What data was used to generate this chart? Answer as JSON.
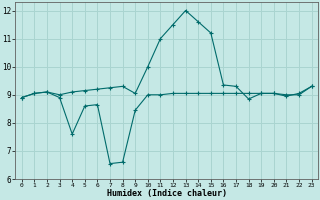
{
  "xlabel": "Humidex (Indice chaleur)",
  "bg_color": "#c5e8e5",
  "line_color": "#006b6b",
  "grid_color": "#aad4d0",
  "xlim": [
    -0.5,
    23.5
  ],
  "ylim": [
    6,
    12.3
  ],
  "xticks": [
    0,
    1,
    2,
    3,
    4,
    5,
    6,
    7,
    8,
    9,
    10,
    11,
    12,
    13,
    14,
    15,
    16,
    17,
    18,
    19,
    20,
    21,
    22,
    23
  ],
  "yticks": [
    6,
    7,
    8,
    9,
    10,
    11,
    12
  ],
  "line1_x": [
    0,
    1,
    2,
    3,
    4,
    5,
    6,
    7,
    8,
    9,
    10,
    11,
    12,
    13,
    14,
    15,
    16,
    17,
    18,
    19,
    20,
    21,
    22,
    23
  ],
  "line1_y": [
    8.9,
    9.05,
    9.1,
    8.9,
    7.6,
    8.6,
    8.65,
    6.55,
    6.6,
    8.45,
    9.0,
    9.0,
    9.05,
    9.05,
    9.05,
    9.05,
    9.05,
    9.05,
    9.05,
    9.05,
    9.05,
    9.0,
    9.0,
    9.3
  ],
  "line2_x": [
    0,
    1,
    2,
    3,
    4,
    5,
    6,
    7,
    8,
    9,
    10,
    11,
    12,
    13,
    14,
    15,
    16,
    17,
    18,
    19,
    20,
    21,
    22,
    23
  ],
  "line2_y": [
    8.9,
    9.05,
    9.1,
    9.0,
    9.1,
    9.15,
    9.2,
    9.25,
    9.3,
    9.05,
    10.0,
    11.0,
    11.5,
    12.0,
    11.6,
    11.2,
    9.35,
    9.3,
    8.85,
    9.05,
    9.05,
    8.95,
    9.05,
    9.3
  ]
}
